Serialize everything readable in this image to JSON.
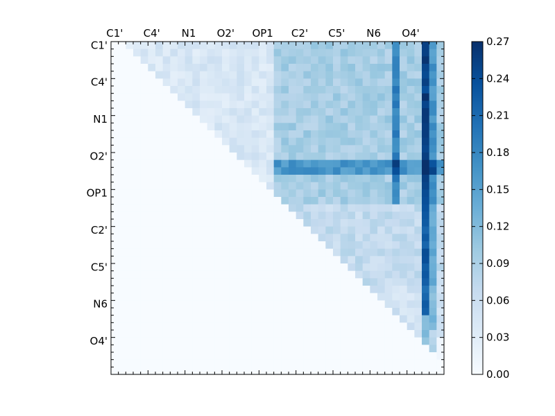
{
  "chart_data": {
    "type": "heatmap",
    "title": "",
    "xlabel": "",
    "ylabel": "",
    "x_tick_labels": [
      "C1'",
      "C4'",
      "N1",
      "O2'",
      "OP1",
      "C2'",
      "C5'",
      "N6",
      "O4'"
    ],
    "y_tick_labels": [
      "C1'",
      "C4'",
      "N1",
      "O2'",
      "OP1",
      "C2'",
      "C5'",
      "N6",
      "O4'"
    ],
    "matrix_size": 45,
    "labeled_every": 5,
    "matrix_shape": "upper-triangular",
    "colormap": "Blues",
    "colorbar": {
      "range": [
        0.0,
        0.27
      ],
      "ticks": [
        "0.00",
        "0.03",
        "0.06",
        "0.09",
        "0.12",
        "0.15",
        "0.18",
        "0.21",
        "0.24",
        "0.27"
      ],
      "placement": "right"
    },
    "approx_values": {
      "background": 0.0,
      "upper_block_typical": 0.05,
      "right_block_typical": 0.1,
      "strong_rows": [
        16,
        17
      ],
      "strong_columns": [
        38,
        42,
        43
      ],
      "max_value": 0.27
    },
    "grid": false
  }
}
